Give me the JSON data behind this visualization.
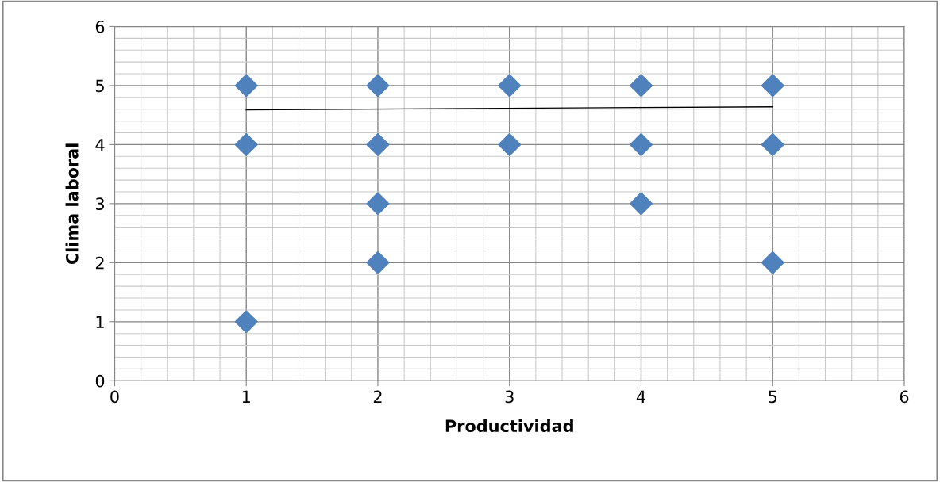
{
  "chart_data": {
    "type": "scatter",
    "xlabel": "Productividad",
    "ylabel": "Clima laboral",
    "xlim": [
      0,
      6
    ],
    "ylim": [
      0,
      6
    ],
    "xticks": [
      0,
      1,
      2,
      3,
      4,
      5,
      6
    ],
    "yticks": [
      0,
      1,
      2,
      3,
      4,
      5,
      6
    ],
    "grid": true,
    "marker": "diamond",
    "legend": false,
    "series": [
      {
        "color": "#4f81bd",
        "x": [
          1,
          1,
          1,
          2,
          2,
          2,
          2,
          3,
          3,
          4,
          4,
          4,
          5,
          5,
          5
        ],
        "values": [
          5,
          4,
          1,
          5,
          4,
          3,
          2,
          5,
          4,
          5,
          4,
          3,
          5,
          4,
          2
        ]
      },
      {
        "type": "line",
        "color": "#000000",
        "marker": "none",
        "line_style": "solid",
        "x": [
          1,
          5
        ],
        "values": [
          4.59,
          4.64
        ]
      }
    ]
  }
}
